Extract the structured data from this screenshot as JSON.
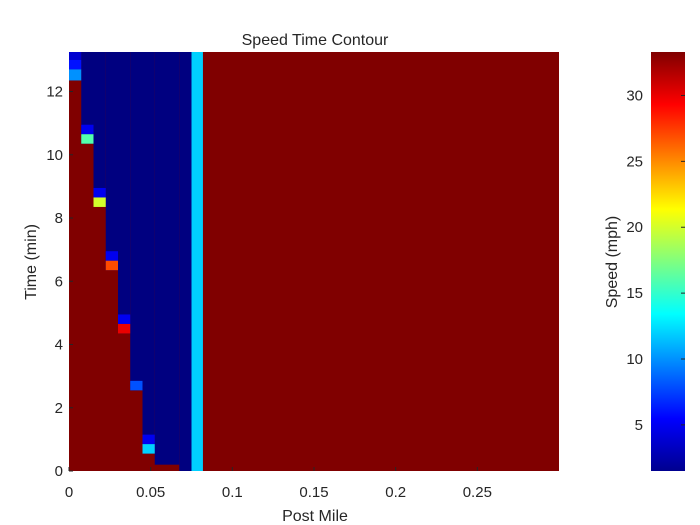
{
  "chart_data": {
    "type": "heatmap",
    "title": "Speed Time Contour",
    "xlabel": "Post Mile",
    "ylabel": "Time (min)",
    "colorbar_label": "Speed (mph)",
    "colormap": "jet",
    "xlim": [
      0,
      0.3
    ],
    "ylim": [
      0,
      13.25
    ],
    "clim": [
      1.5,
      33.3
    ],
    "x_ticks": [
      0,
      0.05,
      0.1,
      0.15,
      0.2,
      0.25
    ],
    "x_tick_labels": [
      "0",
      "0.05",
      "0.1",
      "0.15",
      "0.2",
      "0.25"
    ],
    "y_ticks": [
      0,
      2,
      4,
      6,
      8,
      10,
      12
    ],
    "y_tick_labels": [
      "0",
      "2",
      "4",
      "6",
      "8",
      "10",
      "12"
    ],
    "colorbar_ticks": [
      5,
      10,
      15,
      20,
      25,
      30
    ],
    "colorbar_tick_labels": [
      "5",
      "10",
      "15",
      "20",
      "25",
      "30"
    ],
    "background_speed": 33.3,
    "regions": [
      {
        "x": [
          0.0,
          0.0075
        ],
        "y": [
          12.35,
          13.25
        ],
        "speed": 1.5
      },
      {
        "x": [
          0.0075,
          0.015
        ],
        "y": [
          10.35,
          13.25
        ],
        "speed": 1.5
      },
      {
        "x": [
          0.015,
          0.0225
        ],
        "y": [
          8.35,
          13.25
        ],
        "speed": 1.5
      },
      {
        "x": [
          0.0225,
          0.03
        ],
        "y": [
          6.35,
          13.25
        ],
        "speed": 1.5
      },
      {
        "x": [
          0.03,
          0.0375
        ],
        "y": [
          4.35,
          13.25
        ],
        "speed": 1.5
      },
      {
        "x": [
          0.0375,
          0.045
        ],
        "y": [
          2.55,
          13.25
        ],
        "speed": 1.5
      },
      {
        "x": [
          0.045,
          0.0525
        ],
        "y": [
          0.55,
          13.25
        ],
        "speed": 1.5
      },
      {
        "x": [
          0.0525,
          0.0675
        ],
        "y": [
          0.2,
          13.25
        ],
        "speed": 1.5
      },
      {
        "x": [
          0.0675,
          0.075
        ],
        "y": [
          0.0,
          13.25
        ],
        "speed": 1.5
      },
      {
        "x": [
          0.075,
          0.082
        ],
        "y": [
          0.0,
          13.25
        ],
        "speed": 12.0
      },
      {
        "x": [
          0.0,
          0.0075
        ],
        "y": [
          13.0,
          13.25
        ],
        "speed": 4.0
      },
      {
        "x": [
          0.0,
          0.0075
        ],
        "y": [
          12.7,
          13.0
        ],
        "speed": 6.0
      },
      {
        "x": [
          0.0,
          0.0075
        ],
        "y": [
          12.35,
          12.7
        ],
        "speed": 10.0
      },
      {
        "x": [
          0.0075,
          0.015
        ],
        "y": [
          10.65,
          10.95
        ],
        "speed": 5.0
      },
      {
        "x": [
          0.0075,
          0.015
        ],
        "y": [
          10.35,
          10.65
        ],
        "speed": 16.0
      },
      {
        "x": [
          0.015,
          0.0225
        ],
        "y": [
          8.65,
          8.95
        ],
        "speed": 5.0
      },
      {
        "x": [
          0.015,
          0.0225
        ],
        "y": [
          8.35,
          8.65
        ],
        "speed": 20.0
      },
      {
        "x": [
          0.0225,
          0.03
        ],
        "y": [
          6.65,
          6.95
        ],
        "speed": 5.0
      },
      {
        "x": [
          0.0225,
          0.03
        ],
        "y": [
          6.35,
          6.65
        ],
        "speed": 27.0
      },
      {
        "x": [
          0.03,
          0.0375
        ],
        "y": [
          4.65,
          4.95
        ],
        "speed": 5.0
      },
      {
        "x": [
          0.03,
          0.0375
        ],
        "y": [
          4.35,
          4.65
        ],
        "speed": 30.0
      },
      {
        "x": [
          0.0375,
          0.045
        ],
        "y": [
          2.55,
          2.85
        ],
        "speed": 8.0
      },
      {
        "x": [
          0.045,
          0.0525
        ],
        "y": [
          0.85,
          1.15
        ],
        "speed": 5.0
      },
      {
        "x": [
          0.045,
          0.0525
        ],
        "y": [
          0.55,
          0.85
        ],
        "speed": 12.0
      }
    ]
  }
}
